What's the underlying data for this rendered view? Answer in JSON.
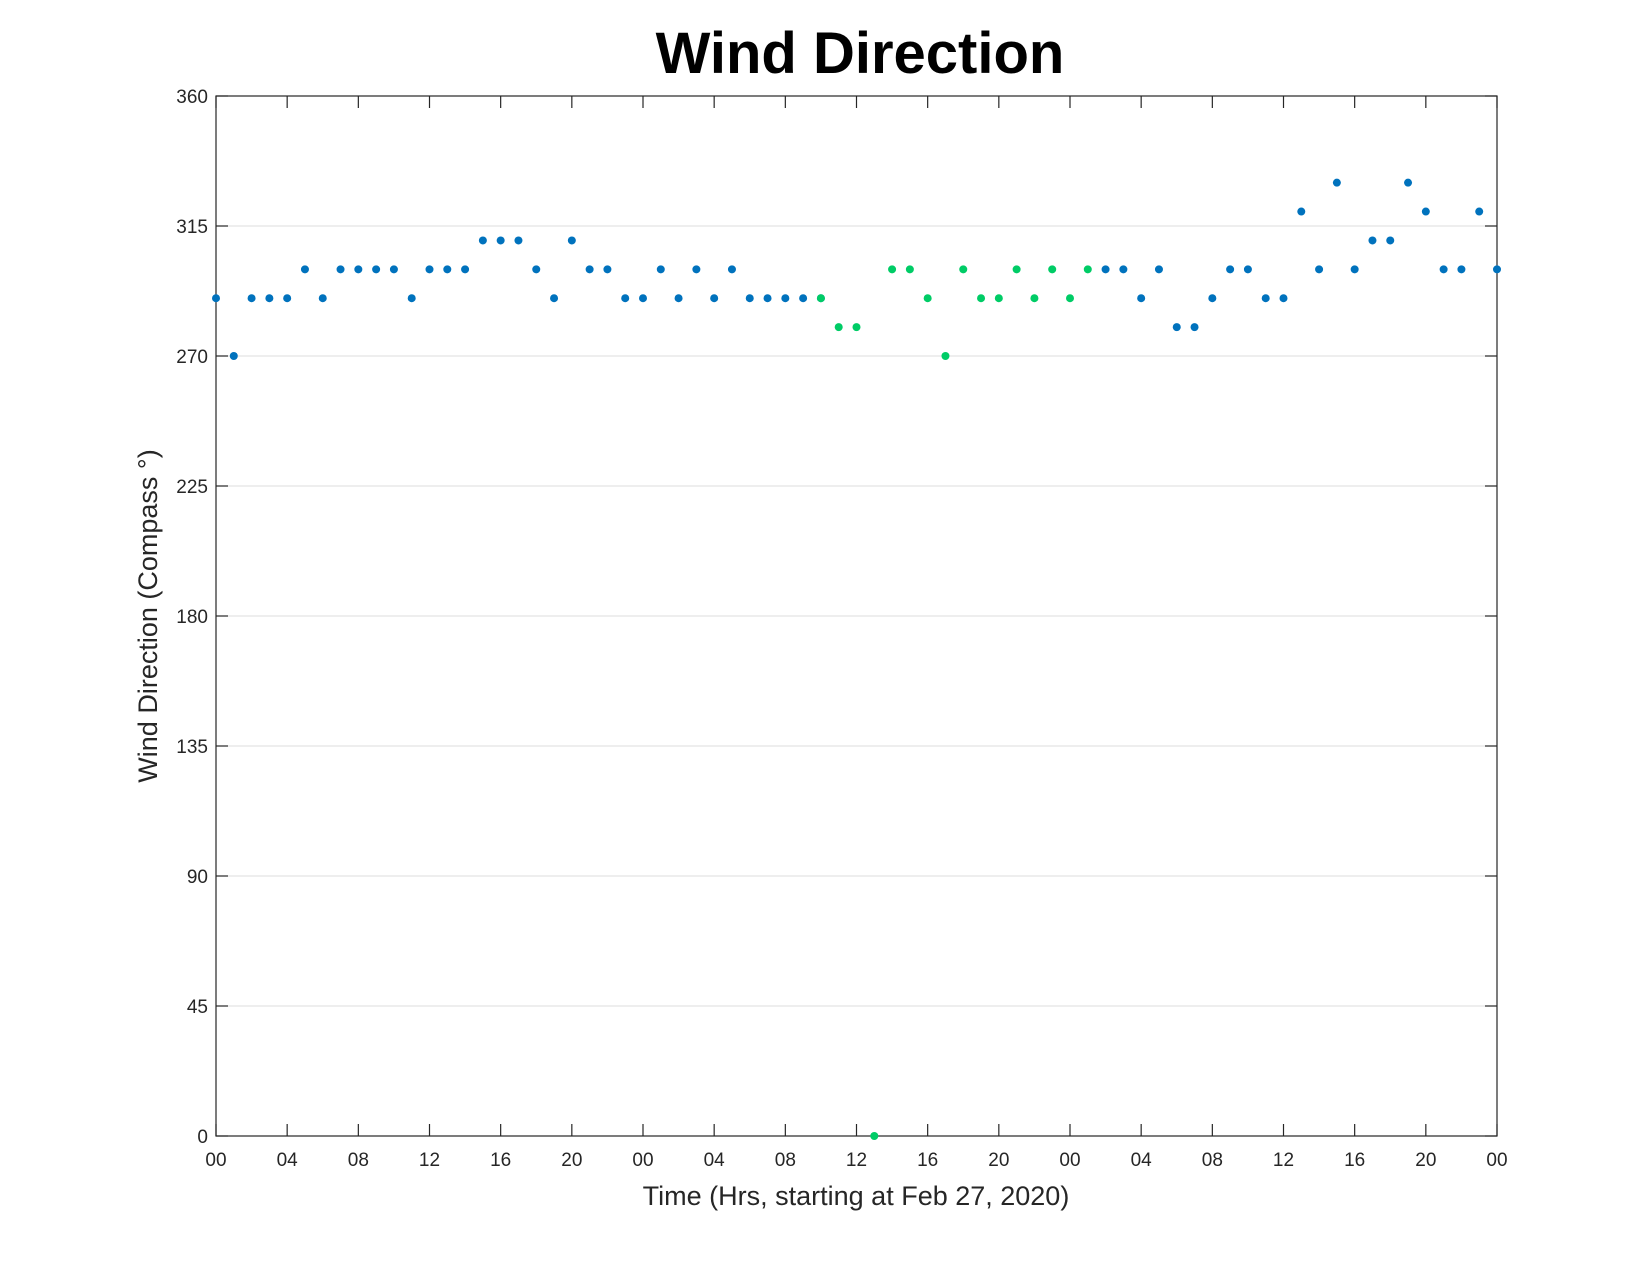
{
  "chart_data": {
    "type": "scatter",
    "title": "Wind Direction",
    "xlabel": "Time (Hrs, starting at Feb 27, 2020)",
    "ylabel": "Wind Direction (Compass °)",
    "ylim": [
      0,
      360
    ],
    "yticks": [
      0,
      45,
      90,
      135,
      180,
      225,
      270,
      315,
      360
    ],
    "xlim": [
      0,
      72
    ],
    "xtick_step_hours": 4,
    "xtick_labels": [
      "00",
      "04",
      "08",
      "12",
      "16",
      "20",
      "00",
      "04",
      "08",
      "12",
      "16",
      "20",
      "00",
      "04",
      "08",
      "12",
      "16",
      "20",
      "00"
    ],
    "grid": true,
    "box": true,
    "colors": {
      "blue": "#0072BD",
      "green": "#00CC66",
      "grid": "#dcdcdc",
      "axis": "#262626"
    },
    "series": [
      {
        "color": "#0072BD",
        "x": [
          0,
          1,
          2,
          3,
          4,
          5,
          6,
          7,
          8,
          9,
          10,
          11,
          12,
          13,
          14,
          15,
          16,
          17,
          18,
          19,
          20,
          21,
          22,
          23,
          24,
          25,
          26,
          27,
          28,
          29,
          30,
          31,
          32,
          33,
          34,
          50,
          51,
          52,
          53,
          54,
          55,
          56,
          57,
          58,
          59,
          60,
          61,
          62,
          63,
          64,
          65,
          66,
          67,
          68,
          69,
          70,
          71,
          72
        ],
        "y": [
          290,
          270,
          290,
          290,
          290,
          300,
          290,
          300,
          300,
          300,
          300,
          290,
          300,
          300,
          300,
          310,
          310,
          310,
          300,
          290,
          310,
          300,
          300,
          290,
          290,
          300,
          290,
          300,
          290,
          300,
          290,
          290,
          290,
          290,
          290,
          300,
          300,
          290,
          300,
          280,
          280,
          290,
          300,
          300,
          290,
          290,
          320,
          300,
          330,
          300,
          310,
          310,
          330,
          320,
          300,
          300,
          320,
          300
        ]
      },
      {
        "color": "#00CC66",
        "x": [
          34,
          35,
          36,
          37,
          38,
          39,
          40,
          41,
          42,
          43,
          44,
          45,
          46,
          47,
          48,
          49
        ],
        "y": [
          290,
          280,
          280,
          0,
          300,
          300,
          290,
          270,
          300,
          290,
          290,
          300,
          290,
          300,
          290,
          300
        ]
      }
    ]
  }
}
